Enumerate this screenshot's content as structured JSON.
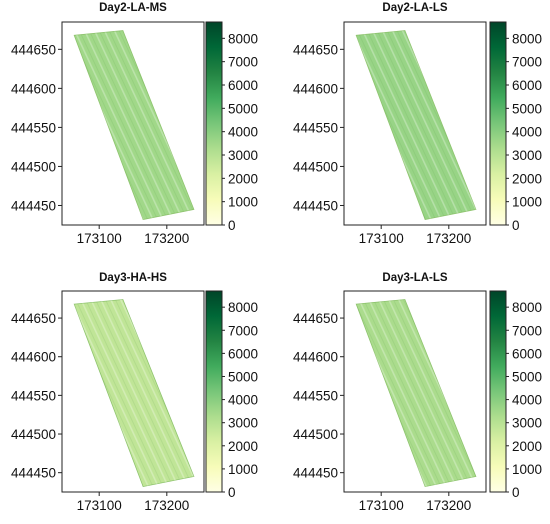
{
  "colorbar": {
    "ticks": [
      0,
      1000,
      2000,
      3000,
      4000,
      5000,
      6000,
      7000,
      8000
    ],
    "max": 8700,
    "colors": [
      "#ffffe5",
      "#f7fcb9",
      "#d9f0a3",
      "#addd8e",
      "#78c679",
      "#41ab5d",
      "#238443",
      "#006837",
      "#004529"
    ]
  },
  "chart_data": [
    {
      "type": "heatmap",
      "title": "Day2-LA-MS",
      "x_ticks": [
        173100,
        173200
      ],
      "y_ticks": [
        444650,
        444600,
        444550,
        444500,
        444450
      ],
      "xlim": [
        173045,
        173255
      ],
      "ylim": [
        444425,
        444685
      ],
      "polygon": [
        [
          173063,
          444668
        ],
        [
          173135,
          444674
        ],
        [
          173240,
          444445
        ],
        [
          173165,
          444432
        ]
      ],
      "typical_value": 3500,
      "value_range": [
        0,
        8700
      ]
    },
    {
      "type": "heatmap",
      "title": "Day2-LA-LS",
      "x_ticks": [
        173100,
        173200
      ],
      "y_ticks": [
        444650,
        444600,
        444550,
        444500,
        444450
      ],
      "xlim": [
        173045,
        173255
      ],
      "ylim": [
        444425,
        444685
      ],
      "polygon": [
        [
          173063,
          444668
        ],
        [
          173135,
          444674
        ],
        [
          173240,
          444445
        ],
        [
          173165,
          444432
        ]
      ],
      "typical_value": 3700,
      "value_range": [
        0,
        8700
      ]
    },
    {
      "type": "heatmap",
      "title": "Day3-HA-HS",
      "x_ticks": [
        173100,
        173200
      ],
      "y_ticks": [
        444650,
        444600,
        444550,
        444500,
        444450
      ],
      "xlim": [
        173045,
        173255
      ],
      "ylim": [
        444425,
        444685
      ],
      "polygon": [
        [
          173063,
          444668
        ],
        [
          173135,
          444674
        ],
        [
          173240,
          444445
        ],
        [
          173165,
          444432
        ]
      ],
      "typical_value": 2800,
      "value_range": [
        0,
        8700
      ]
    },
    {
      "type": "heatmap",
      "title": "Day3-LA-LS",
      "x_ticks": [
        173100,
        173200
      ],
      "y_ticks": [
        444650,
        444600,
        444550,
        444500,
        444450
      ],
      "xlim": [
        173045,
        173255
      ],
      "ylim": [
        444425,
        444685
      ],
      "polygon": [
        [
          173063,
          444668
        ],
        [
          173135,
          444674
        ],
        [
          173240,
          444445
        ],
        [
          173165,
          444432
        ]
      ],
      "typical_value": 3300,
      "value_range": [
        0,
        8700
      ]
    }
  ]
}
